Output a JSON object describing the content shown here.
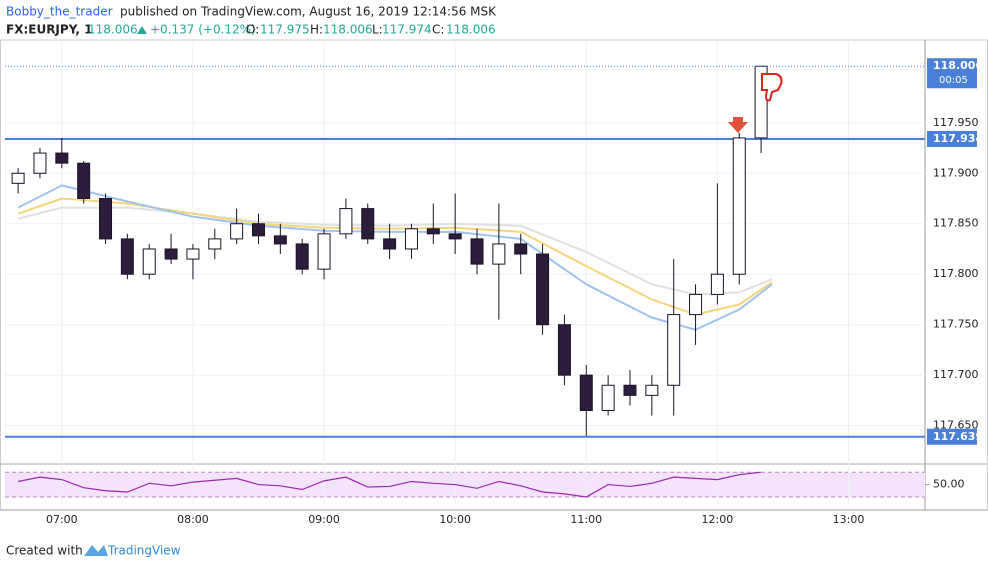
{
  "header": {
    "author": "Bobby_the_trader",
    "published": "published on TradingView.com, August 16, 2019 12:14:56 MSK",
    "symbol": "FX:EURJPY, 1",
    "last": "118.006",
    "change": "+0.137 (+0.12%)",
    "open_label": "O:",
    "open": "117.975",
    "high_label": "H:",
    "high": "118.006",
    "low_label": "L:",
    "low": "117.974",
    "close_label": "C:",
    "close": "118.006"
  },
  "chart_data": {
    "type": "candlestick",
    "x": [
      400,
      410,
      420,
      430,
      440,
      450,
      460,
      470,
      480,
      490,
      500,
      510,
      520,
      530,
      540,
      550,
      560,
      570,
      580,
      590,
      600,
      610,
      620,
      630,
      640,
      650,
      660,
      670,
      680,
      690,
      700,
      710,
      720,
      730,
      740
    ],
    "open": [
      117.89,
      117.9,
      117.92,
      117.91,
      117.875,
      117.835,
      117.8,
      117.825,
      117.815,
      117.825,
      117.835,
      117.85,
      117.838,
      117.83,
      117.805,
      117.84,
      117.865,
      117.835,
      117.825,
      117.845,
      117.84,
      117.835,
      117.81,
      117.83,
      117.82,
      117.75,
      117.7,
      117.665,
      117.69,
      117.68,
      117.69,
      117.76,
      117.78,
      117.8,
      117.935
    ],
    "high": [
      117.905,
      117.925,
      117.935,
      117.912,
      117.88,
      117.84,
      117.83,
      117.84,
      117.83,
      117.845,
      117.865,
      117.86,
      117.85,
      117.835,
      117.845,
      117.875,
      117.87,
      117.85,
      117.85,
      117.87,
      117.88,
      117.845,
      117.87,
      117.84,
      117.83,
      117.76,
      117.71,
      117.7,
      117.705,
      117.7,
      117.815,
      117.79,
      117.89,
      117.94,
      118.006
    ],
    "low": [
      117.88,
      117.895,
      117.905,
      117.87,
      117.83,
      117.795,
      117.795,
      117.81,
      117.795,
      117.815,
      117.83,
      117.83,
      117.82,
      117.8,
      117.795,
      117.835,
      117.83,
      117.815,
      117.815,
      117.83,
      117.82,
      117.8,
      117.755,
      117.8,
      117.74,
      117.69,
      117.64,
      117.66,
      117.67,
      117.66,
      117.66,
      117.73,
      117.77,
      117.79,
      117.92
    ],
    "close": [
      117.9,
      117.92,
      117.91,
      117.875,
      117.835,
      117.8,
      117.825,
      117.815,
      117.825,
      117.835,
      117.85,
      117.838,
      117.83,
      117.805,
      117.84,
      117.865,
      117.835,
      117.825,
      117.845,
      117.84,
      117.835,
      117.81,
      117.83,
      117.82,
      117.75,
      117.7,
      117.665,
      117.69,
      117.68,
      117.69,
      117.76,
      117.78,
      117.8,
      117.935,
      118.006
    ],
    "xlim": [
      394,
      815
    ],
    "xticks": [
      {
        "value": 420,
        "label": "07:00"
      },
      {
        "value": 480,
        "label": "08:00"
      },
      {
        "value": 540,
        "label": "09:00"
      },
      {
        "value": 600,
        "label": "10:00"
      },
      {
        "value": 660,
        "label": "11:00"
      },
      {
        "value": 720,
        "label": "12:00"
      },
      {
        "value": 780,
        "label": "13:00"
      }
    ],
    "ylim": [
      117.614,
      118.032
    ],
    "yticks": [
      {
        "value": 117.65,
        "label": "117.650"
      },
      {
        "value": 117.7,
        "label": "117.700"
      },
      {
        "value": 117.75,
        "label": "117.750"
      },
      {
        "value": 117.8,
        "label": "117.800"
      },
      {
        "value": 117.85,
        "label": "117.850"
      },
      {
        "value": 117.9,
        "label": "117.900"
      },
      {
        "value": 117.95,
        "label": "117.950"
      }
    ],
    "grid": true,
    "moving_averages": {
      "x": [
        400,
        420,
        450,
        480,
        510,
        540,
        570,
        600,
        630,
        660,
        690,
        710,
        730,
        745
      ],
      "series": [
        {
          "color": "#e0e0e0",
          "values": [
            117.855,
            117.866,
            117.866,
            117.86,
            117.852,
            117.849,
            117.848,
            117.85,
            117.848,
            117.822,
            117.79,
            117.78,
            117.782,
            117.795
          ]
        },
        {
          "color": "#f5d47a",
          "values": [
            117.86,
            117.875,
            117.87,
            117.86,
            117.85,
            117.846,
            117.845,
            117.846,
            117.842,
            117.808,
            117.775,
            117.76,
            117.77,
            117.792
          ]
        },
        {
          "color": "#9ec3ee",
          "values": [
            117.866,
            117.888,
            117.872,
            117.857,
            117.848,
            117.843,
            117.842,
            117.842,
            117.835,
            117.79,
            117.757,
            117.745,
            117.765,
            117.79
          ]
        }
      ]
    },
    "levels": [
      {
        "value": 117.934,
        "color": "#4a80d8"
      },
      {
        "value": 117.639,
        "color": "#4a80d8"
      }
    ],
    "last_price": 118.006,
    "countdown": "00:05",
    "rsi": {
      "values": [
        55,
        62,
        58,
        45,
        40,
        38,
        52,
        48,
        54,
        57,
        60,
        50,
        48,
        42,
        56,
        62,
        46,
        47,
        55,
        52,
        50,
        44,
        55,
        48,
        38,
        35,
        30,
        50,
        47,
        52,
        62,
        60,
        58,
        66,
        70
      ],
      "ylim": [
        17,
        80
      ],
      "yticks": [
        {
          "value": 50,
          "label": "50.00"
        }
      ],
      "bands": [
        30,
        70
      ],
      "color": "#9c27b0"
    }
  },
  "footer": {
    "created": "Created with",
    "brand": "TradingView"
  }
}
